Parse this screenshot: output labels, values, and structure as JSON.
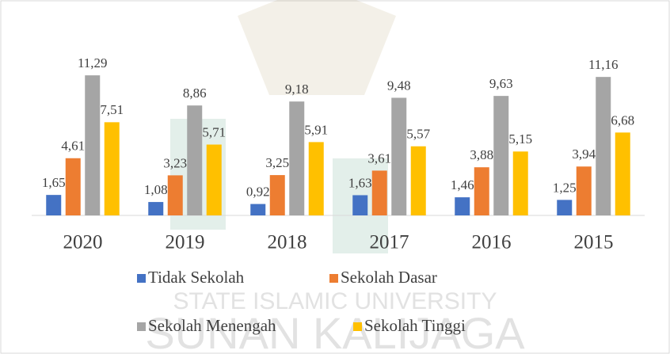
{
  "chart_data": {
    "type": "bar",
    "categories": [
      "2020",
      "2019",
      "2018",
      "2017",
      "2016",
      "2015"
    ],
    "series": [
      {
        "name": "Tidak Sekolah",
        "color": "#4472c4",
        "values": [
          1.65,
          1.08,
          0.92,
          1.63,
          1.46,
          1.25
        ],
        "value_labels": [
          "1,65",
          "1,08",
          "0,92",
          "1,63",
          "1,46",
          "1,25"
        ]
      },
      {
        "name": "Sekolah Dasar",
        "color": "#ed7d31",
        "values": [
          4.61,
          3.23,
          3.25,
          3.61,
          3.88,
          3.94
        ],
        "value_labels": [
          "4,61",
          "3,23",
          "3,25",
          "3,61",
          "3,88",
          "3,94"
        ]
      },
      {
        "name": "Sekolah Menengah",
        "color": "#a5a5a5",
        "values": [
          11.29,
          8.86,
          9.18,
          9.48,
          9.63,
          11.16
        ],
        "value_labels": [
          "11,29",
          "8,86",
          "9,18",
          "9,48",
          "9,63",
          "11,16"
        ]
      },
      {
        "name": "Sekolah Tinggi",
        "color": "#ffc000",
        "values": [
          7.51,
          5.71,
          5.91,
          5.57,
          5.15,
          6.68
        ],
        "value_labels": [
          "7,51",
          "5,71",
          "5,91",
          "5,57",
          "5,15",
          "6,68"
        ]
      }
    ],
    "ylim": [
      0,
      12
    ],
    "watermark": [
      "STATE ISLAMIC UNIVERSITY",
      "SUNAN KALIJAGA"
    ]
  }
}
